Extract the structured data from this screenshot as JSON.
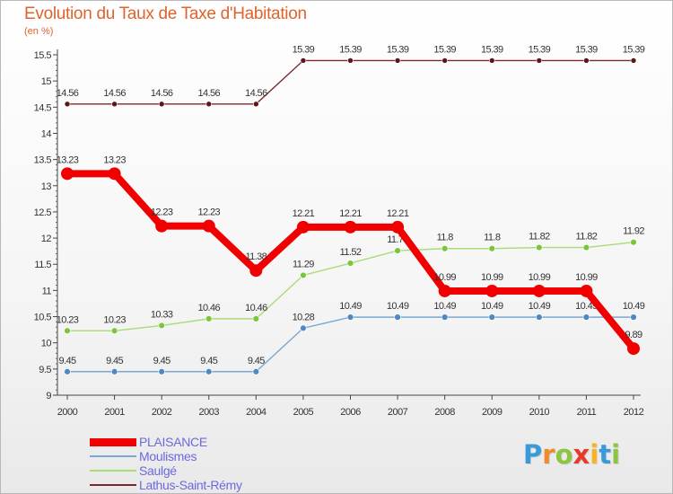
{
  "title": "Evolution du Taux de Taxe d'Habitation",
  "subtitle": "(en %)",
  "logo": {
    "text": "Proxiti",
    "letters": [
      {
        "ch": "P",
        "color": "#3a9ad9"
      },
      {
        "ch": "r",
        "color": "#f08a2c"
      },
      {
        "ch": "o",
        "color": "#8cc63f"
      },
      {
        "ch": "x",
        "color": "#e8392b"
      },
      {
        "ch": "i",
        "color": "#f7b321"
      },
      {
        "ch": "t",
        "color": "#3a9ad9"
      },
      {
        "ch": "i",
        "color": "#8cc63f"
      }
    ]
  },
  "chart_data": {
    "type": "line",
    "title": "Evolution du Taux de Taxe d'Habitation",
    "ylabel": "(en %)",
    "xlabel": "",
    "x": [
      2000,
      2001,
      2002,
      2003,
      2004,
      2005,
      2006,
      2007,
      2008,
      2009,
      2010,
      2011,
      2012
    ],
    "ylim": [
      9,
      15.5
    ],
    "yticks": [
      9,
      9.5,
      10,
      10.5,
      11,
      11.5,
      12,
      12.5,
      13,
      13.5,
      14,
      14.5,
      15,
      15.5
    ],
    "ytick_labels": [
      "9",
      "9.5",
      "10",
      "10.5",
      "11",
      "11.5",
      "12",
      "12.5",
      "13",
      "13.5",
      "14",
      "14.5",
      "15",
      "15.5"
    ],
    "grid": false,
    "legend_position": "bottom-left",
    "series": [
      {
        "name": "Lathus-Saint-Rémy",
        "color": "#7b2a2a",
        "marker": "#5a1818",
        "width": 1.4,
        "r": 3,
        "values": [
          14.56,
          14.56,
          14.56,
          14.56,
          14.56,
          15.39,
          15.39,
          15.39,
          15.39,
          15.39,
          15.39,
          15.39,
          15.39
        ],
        "labels": [
          "14.56",
          "14.56",
          "14.56",
          "14.56",
          "14.56",
          "15.39",
          "15.39",
          "15.39",
          "15.39",
          "15.39",
          "15.39",
          "15.39",
          "15.39"
        ]
      },
      {
        "name": "Saulgé",
        "color": "#a8dc78",
        "marker": "#7cc43c",
        "width": 1.4,
        "r": 3.4,
        "values": [
          10.23,
          10.23,
          10.33,
          10.46,
          10.46,
          11.29,
          11.52,
          11.76,
          11.8,
          11.8,
          11.82,
          11.82,
          11.92
        ],
        "labels": [
          "10.23",
          "10.23",
          "10.33",
          "10.46",
          "10.46",
          "11.29",
          "11.52",
          "11.76",
          "11.8",
          "11.8",
          "11.82",
          "11.82",
          "11.92"
        ]
      },
      {
        "name": "Moulismes",
        "color": "#7aa8d0",
        "marker": "#4d88c0",
        "width": 1.4,
        "r": 3.4,
        "values": [
          9.45,
          9.45,
          9.45,
          9.45,
          9.45,
          10.28,
          10.49,
          10.49,
          10.49,
          10.49,
          10.49,
          10.49,
          10.49
        ],
        "labels": [
          "9.45",
          "9.45",
          "9.45",
          "9.45",
          "9.45",
          "10.28",
          "10.49",
          "10.49",
          "10.49",
          "10.49",
          "10.49",
          "10.49",
          "10.49"
        ]
      },
      {
        "name": "PLAISANCE",
        "color": "#f00000",
        "marker": "#f00000",
        "width": 8,
        "r": 7,
        "values": [
          13.23,
          13.23,
          12.23,
          12.23,
          11.38,
          12.21,
          12.21,
          12.21,
          10.99,
          10.99,
          10.99,
          10.99,
          9.89
        ],
        "labels": [
          "13.23",
          "13.23",
          "12.23",
          "12.23",
          "11.38",
          "12.21",
          "12.21",
          "12.21",
          "10.99",
          "10.99",
          "10.99",
          "10.99",
          "9.89"
        ]
      }
    ],
    "legend": [
      {
        "name": "PLAISANCE",
        "color": "#f00000",
        "thickness": 9
      },
      {
        "name": "Moulismes",
        "color": "#7aa8d0",
        "thickness": 2
      },
      {
        "name": "Saulgé",
        "color": "#a8dc78",
        "thickness": 2
      },
      {
        "name": "Lathus-Saint-Rémy",
        "color": "#7b2a2a",
        "thickness": 2
      }
    ]
  }
}
